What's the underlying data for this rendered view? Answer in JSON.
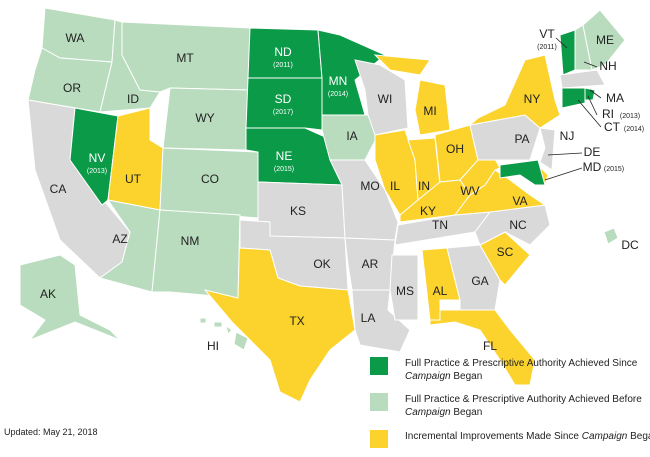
{
  "colors": {
    "since": "#0b9a47",
    "before": "#b8dcbd",
    "incremental": "#fcd22c",
    "none": "#d9d9d9"
  },
  "states": [
    {
      "code": "WA",
      "status": "before"
    },
    {
      "code": "OR",
      "status": "before"
    },
    {
      "code": "CA",
      "status": "none"
    },
    {
      "code": "NV",
      "status": "since",
      "year": "(2013)"
    },
    {
      "code": "ID",
      "status": "before"
    },
    {
      "code": "MT",
      "status": "before"
    },
    {
      "code": "WY",
      "status": "before"
    },
    {
      "code": "UT",
      "status": "incremental"
    },
    {
      "code": "CO",
      "status": "before"
    },
    {
      "code": "AZ",
      "status": "before"
    },
    {
      "code": "NM",
      "status": "before"
    },
    {
      "code": "ND",
      "status": "since",
      "year": "(2011)"
    },
    {
      "code": "SD",
      "status": "since",
      "year": "(2017)"
    },
    {
      "code": "NE",
      "status": "since",
      "year": "(2015)"
    },
    {
      "code": "KS",
      "status": "none"
    },
    {
      "code": "OK",
      "status": "none"
    },
    {
      "code": "TX",
      "status": "incremental"
    },
    {
      "code": "MN",
      "status": "since",
      "year": "(2014)"
    },
    {
      "code": "IA",
      "status": "before"
    },
    {
      "code": "MO",
      "status": "none"
    },
    {
      "code": "AR",
      "status": "none"
    },
    {
      "code": "LA",
      "status": "none"
    },
    {
      "code": "WI",
      "status": "none"
    },
    {
      "code": "IL",
      "status": "incremental"
    },
    {
      "code": "MI",
      "status": "incremental"
    },
    {
      "code": "IN",
      "status": "incremental"
    },
    {
      "code": "OH",
      "status": "incremental"
    },
    {
      "code": "KY",
      "status": "incremental"
    },
    {
      "code": "TN",
      "status": "none"
    },
    {
      "code": "MS",
      "status": "none"
    },
    {
      "code": "AL",
      "status": "incremental"
    },
    {
      "code": "GA",
      "status": "none"
    },
    {
      "code": "FL",
      "status": "incremental"
    },
    {
      "code": "SC",
      "status": "incremental"
    },
    {
      "code": "NC",
      "status": "none"
    },
    {
      "code": "VA",
      "status": "incremental"
    },
    {
      "code": "WV",
      "status": "incremental"
    },
    {
      "code": "PA",
      "status": "none"
    },
    {
      "code": "NY",
      "status": "incremental"
    },
    {
      "code": "NJ",
      "status": "none"
    },
    {
      "code": "DE",
      "status": "incremental"
    },
    {
      "code": "MD",
      "status": "since",
      "year": "(2015)"
    },
    {
      "code": "VT",
      "status": "since",
      "year": "(2011)"
    },
    {
      "code": "NH",
      "status": "before"
    },
    {
      "code": "ME",
      "status": "before"
    },
    {
      "code": "MA",
      "status": "none"
    },
    {
      "code": "CT",
      "status": "since",
      "year": "(2014)"
    },
    {
      "code": "RI",
      "status": "since",
      "year": "(2013)"
    },
    {
      "code": "AK",
      "status": "before"
    },
    {
      "code": "HI",
      "status": "before"
    },
    {
      "code": "DC",
      "status": "before"
    }
  ],
  "legend": [
    {
      "status": "since",
      "text": "Full Practice & Prescriptive Authority Achieved Since ",
      "em": "Campaign",
      "tail": " Began"
    },
    {
      "status": "before",
      "text": "Full Practice & Prescriptive Authority Achieved Before ",
      "em": "Campaign",
      "tail": " Began"
    },
    {
      "status": "incremental",
      "text": "Incremental Improvements Made Since ",
      "em": "Campaign",
      "tail": " Began"
    }
  ],
  "updated": "Updated: May 21, 2018"
}
